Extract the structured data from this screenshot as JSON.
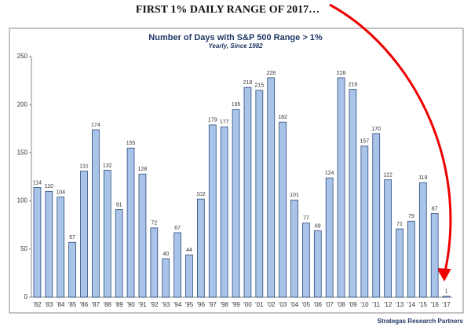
{
  "chart_data": {
    "type": "bar",
    "annotation": "FIRST 1% DAILY RANGE OF 2017…",
    "title": "Number of Days with S&P 500 Range > 1%",
    "subtitle": "Yearly, Since 1982",
    "source": "Strategas Research Partners",
    "categories": [
      "'82",
      "'83",
      "'84",
      "'85",
      "'86",
      "'87",
      "'88",
      "'89",
      "'90",
      "'91",
      "'92",
      "'93",
      "'94",
      "'95",
      "'96",
      "'97",
      "'98",
      "'99",
      "'00",
      "'01",
      "'02",
      "'03",
      "'04",
      "'05",
      "'06",
      "'07",
      "'08",
      "'09",
      "'10",
      "'11",
      "'12",
      "'13",
      "'14",
      "'15",
      "'16",
      "'17"
    ],
    "values": [
      114,
      110,
      104,
      57,
      131,
      174,
      132,
      91,
      155,
      128,
      72,
      40,
      67,
      44,
      102,
      179,
      177,
      195,
      218,
      215,
      228,
      182,
      101,
      77,
      69,
      124,
      228,
      216,
      157,
      170,
      122,
      71,
      79,
      119,
      87,
      1
    ],
    "color": "#a9c4e8",
    "edgecolor": "#2b4a7a",
    "ylim": [
      0,
      250
    ],
    "yticks": [
      0,
      50,
      100,
      150,
      200,
      250
    ],
    "data_labels": true
  }
}
